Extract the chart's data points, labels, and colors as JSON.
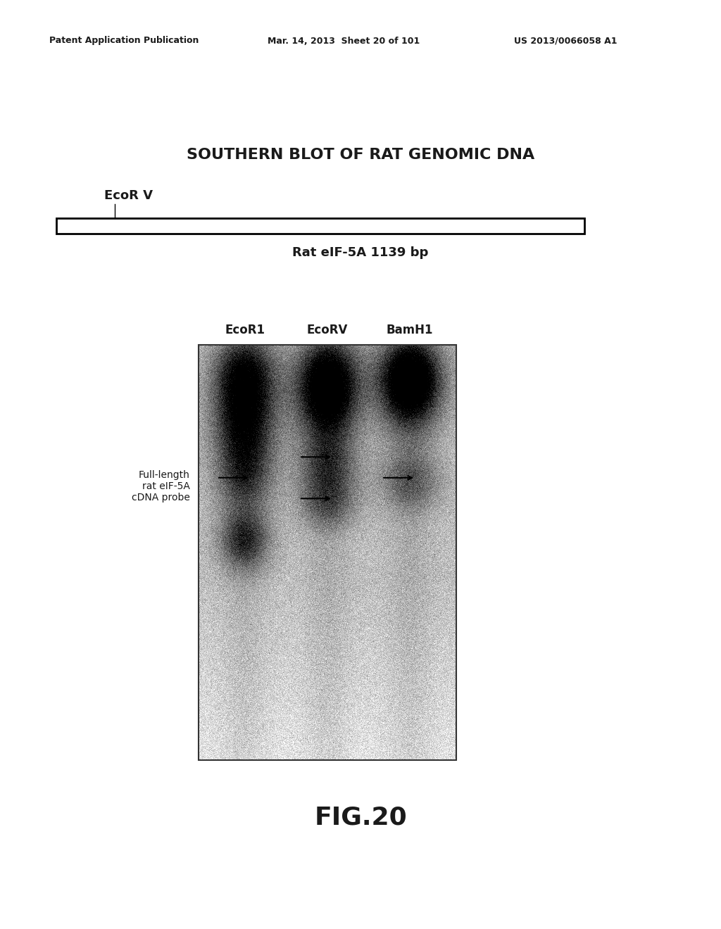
{
  "header_left": "Patent Application Publication",
  "header_mid": "Mar. 14, 2013  Sheet 20 of 101",
  "header_right": "US 2013/0066058 A1",
  "title": "SOUTHERN BLOT OF RAT GENOMIC DNA",
  "restriction_site_label": "EcoR V",
  "bar_label": "Rat eIF-5A 1139 bp",
  "col_labels": [
    "EcoR1",
    "EcoRV",
    "BamH1"
  ],
  "left_label_line1": "Full-length",
  "left_label_line2": "rat eIF-5A",
  "left_label_line3": "cDNA probe",
  "fig_label": "FIG.20",
  "bg_color": "#ffffff",
  "text_color": "#1a1a1a",
  "bar_color": "#ffffff",
  "bar_border": "#000000"
}
